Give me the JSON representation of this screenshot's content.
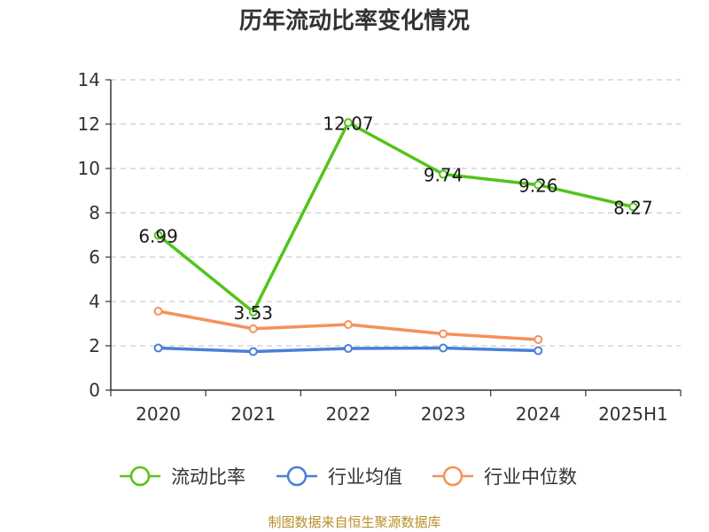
{
  "chart_data": {
    "type": "line",
    "title": "历年流动比率变化情况",
    "categories": [
      "2020",
      "2021",
      "2022",
      "2023",
      "2024",
      "2025H1"
    ],
    "ylim": [
      0,
      14
    ],
    "yticks": [
      0,
      2,
      4,
      6,
      8,
      10,
      12,
      14
    ],
    "grid": "horizontal dashed",
    "legend_position": "bottom",
    "series": [
      {
        "name": "流动比率",
        "color": "#52c41a",
        "values": [
          6.99,
          3.53,
          12.07,
          9.74,
          9.26,
          8.27
        ],
        "labels": [
          "6.99",
          "3.53",
          "12.07",
          "9.74",
          "9.26",
          "8.27"
        ]
      },
      {
        "name": "行业均值",
        "color": "#4a7fd9",
        "values": [
          1.9,
          1.74,
          1.88,
          1.9,
          1.78,
          null
        ]
      },
      {
        "name": "行业中位数",
        "color": "#f79058",
        "values": [
          3.56,
          2.77,
          2.96,
          2.54,
          2.28,
          null
        ]
      }
    ]
  },
  "source": "制图数据来自恒生聚源数据库"
}
